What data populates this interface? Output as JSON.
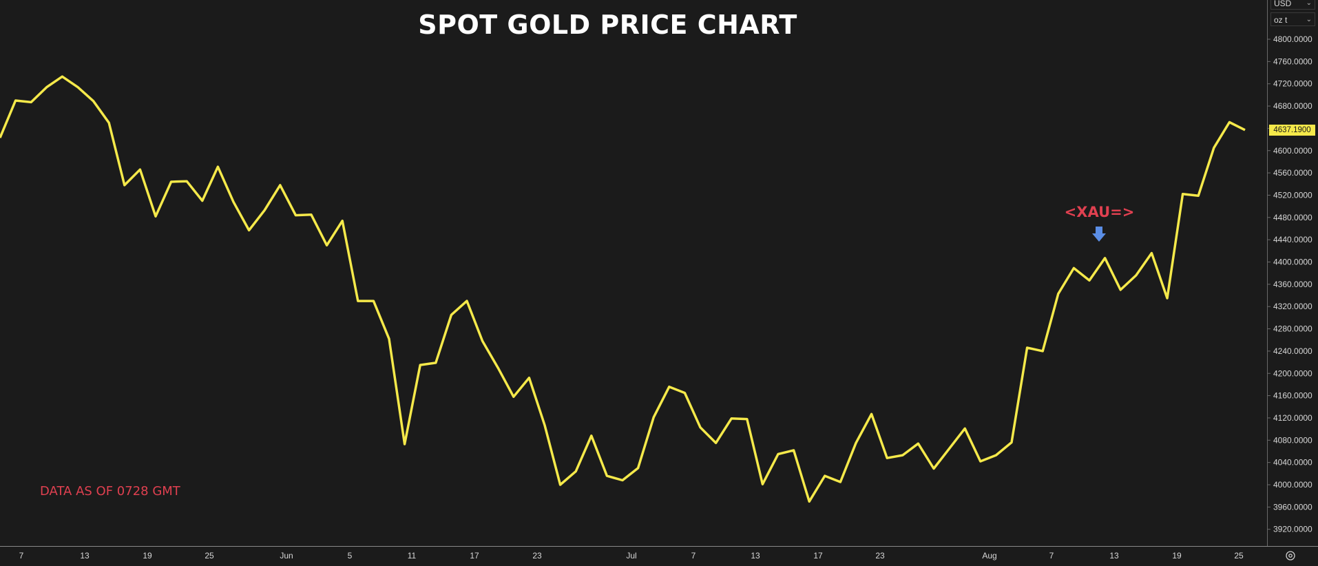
{
  "title": "SPOT GOLD PRICE CHART",
  "note": "DATA AS OF 0728 GMT",
  "ric_label": "<XAU=>",
  "arrow_icon": "down-arrow-icon",
  "currency_select": "USD",
  "unit_select": "oz t",
  "settings_icon": "gear-icon",
  "colors": {
    "background": "#1b1b1b",
    "line": "#f5e94a",
    "annotation": "#e04050",
    "arrow": "#5b8ee6",
    "axis_text": "#d8d8d8"
  },
  "chart_data": {
    "type": "line",
    "title": "SPOT GOLD PRICE CHART",
    "ylim": [
      3880,
      4830
    ],
    "yticks": [
      "4800.0000",
      "4760.0000",
      "4720.0000",
      "4680.0000",
      "4640.0000",
      "4600.0000",
      "4560.0000",
      "4520.0000",
      "4480.0000",
      "4440.0000",
      "4400.0000",
      "4360.0000",
      "4320.0000",
      "4280.0000",
      "4240.0000",
      "4200.0000",
      "4160.0000",
      "4120.0000",
      "4080.0000",
      "4040.0000",
      "4000.0000",
      "3960.0000",
      "3920.0000"
    ],
    "xticks": [
      "7",
      "13",
      "19",
      "25",
      "Jun",
      "5",
      "11",
      "17",
      "23",
      "Jul",
      "7",
      "13",
      "17",
      "23",
      "Aug",
      "7",
      "13",
      "19",
      "25"
    ],
    "last_value": "4637.1900",
    "series": [
      {
        "values": [
          4623,
          4690,
          4687,
          4714,
          4733,
          4714,
          4689,
          4650,
          4538,
          4566,
          4482,
          4544,
          4545,
          4510,
          4571,
          4508,
          4457,
          4493,
          4538,
          4484,
          4485,
          4430,
          4474,
          4330,
          4330,
          4262,
          4073,
          4215,
          4219,
          4305,
          4330,
          4258,
          4210,
          4158,
          4192,
          4107,
          4000,
          4024,
          4088,
          4016,
          4008,
          4030,
          4121,
          4176,
          4165,
          4103,
          4075,
          4119,
          4118,
          4001,
          4055,
          4062,
          3970,
          4016,
          4005,
          4075,
          4127,
          4048,
          4053,
          4074,
          4029,
          4065,
          4101,
          4042,
          4053,
          4076,
          4246,
          4240,
          4343,
          4389,
          4367,
          4407,
          4350,
          4376,
          4416,
          4335,
          4522,
          4519,
          4605,
          4651,
          4637
        ]
      }
    ]
  }
}
